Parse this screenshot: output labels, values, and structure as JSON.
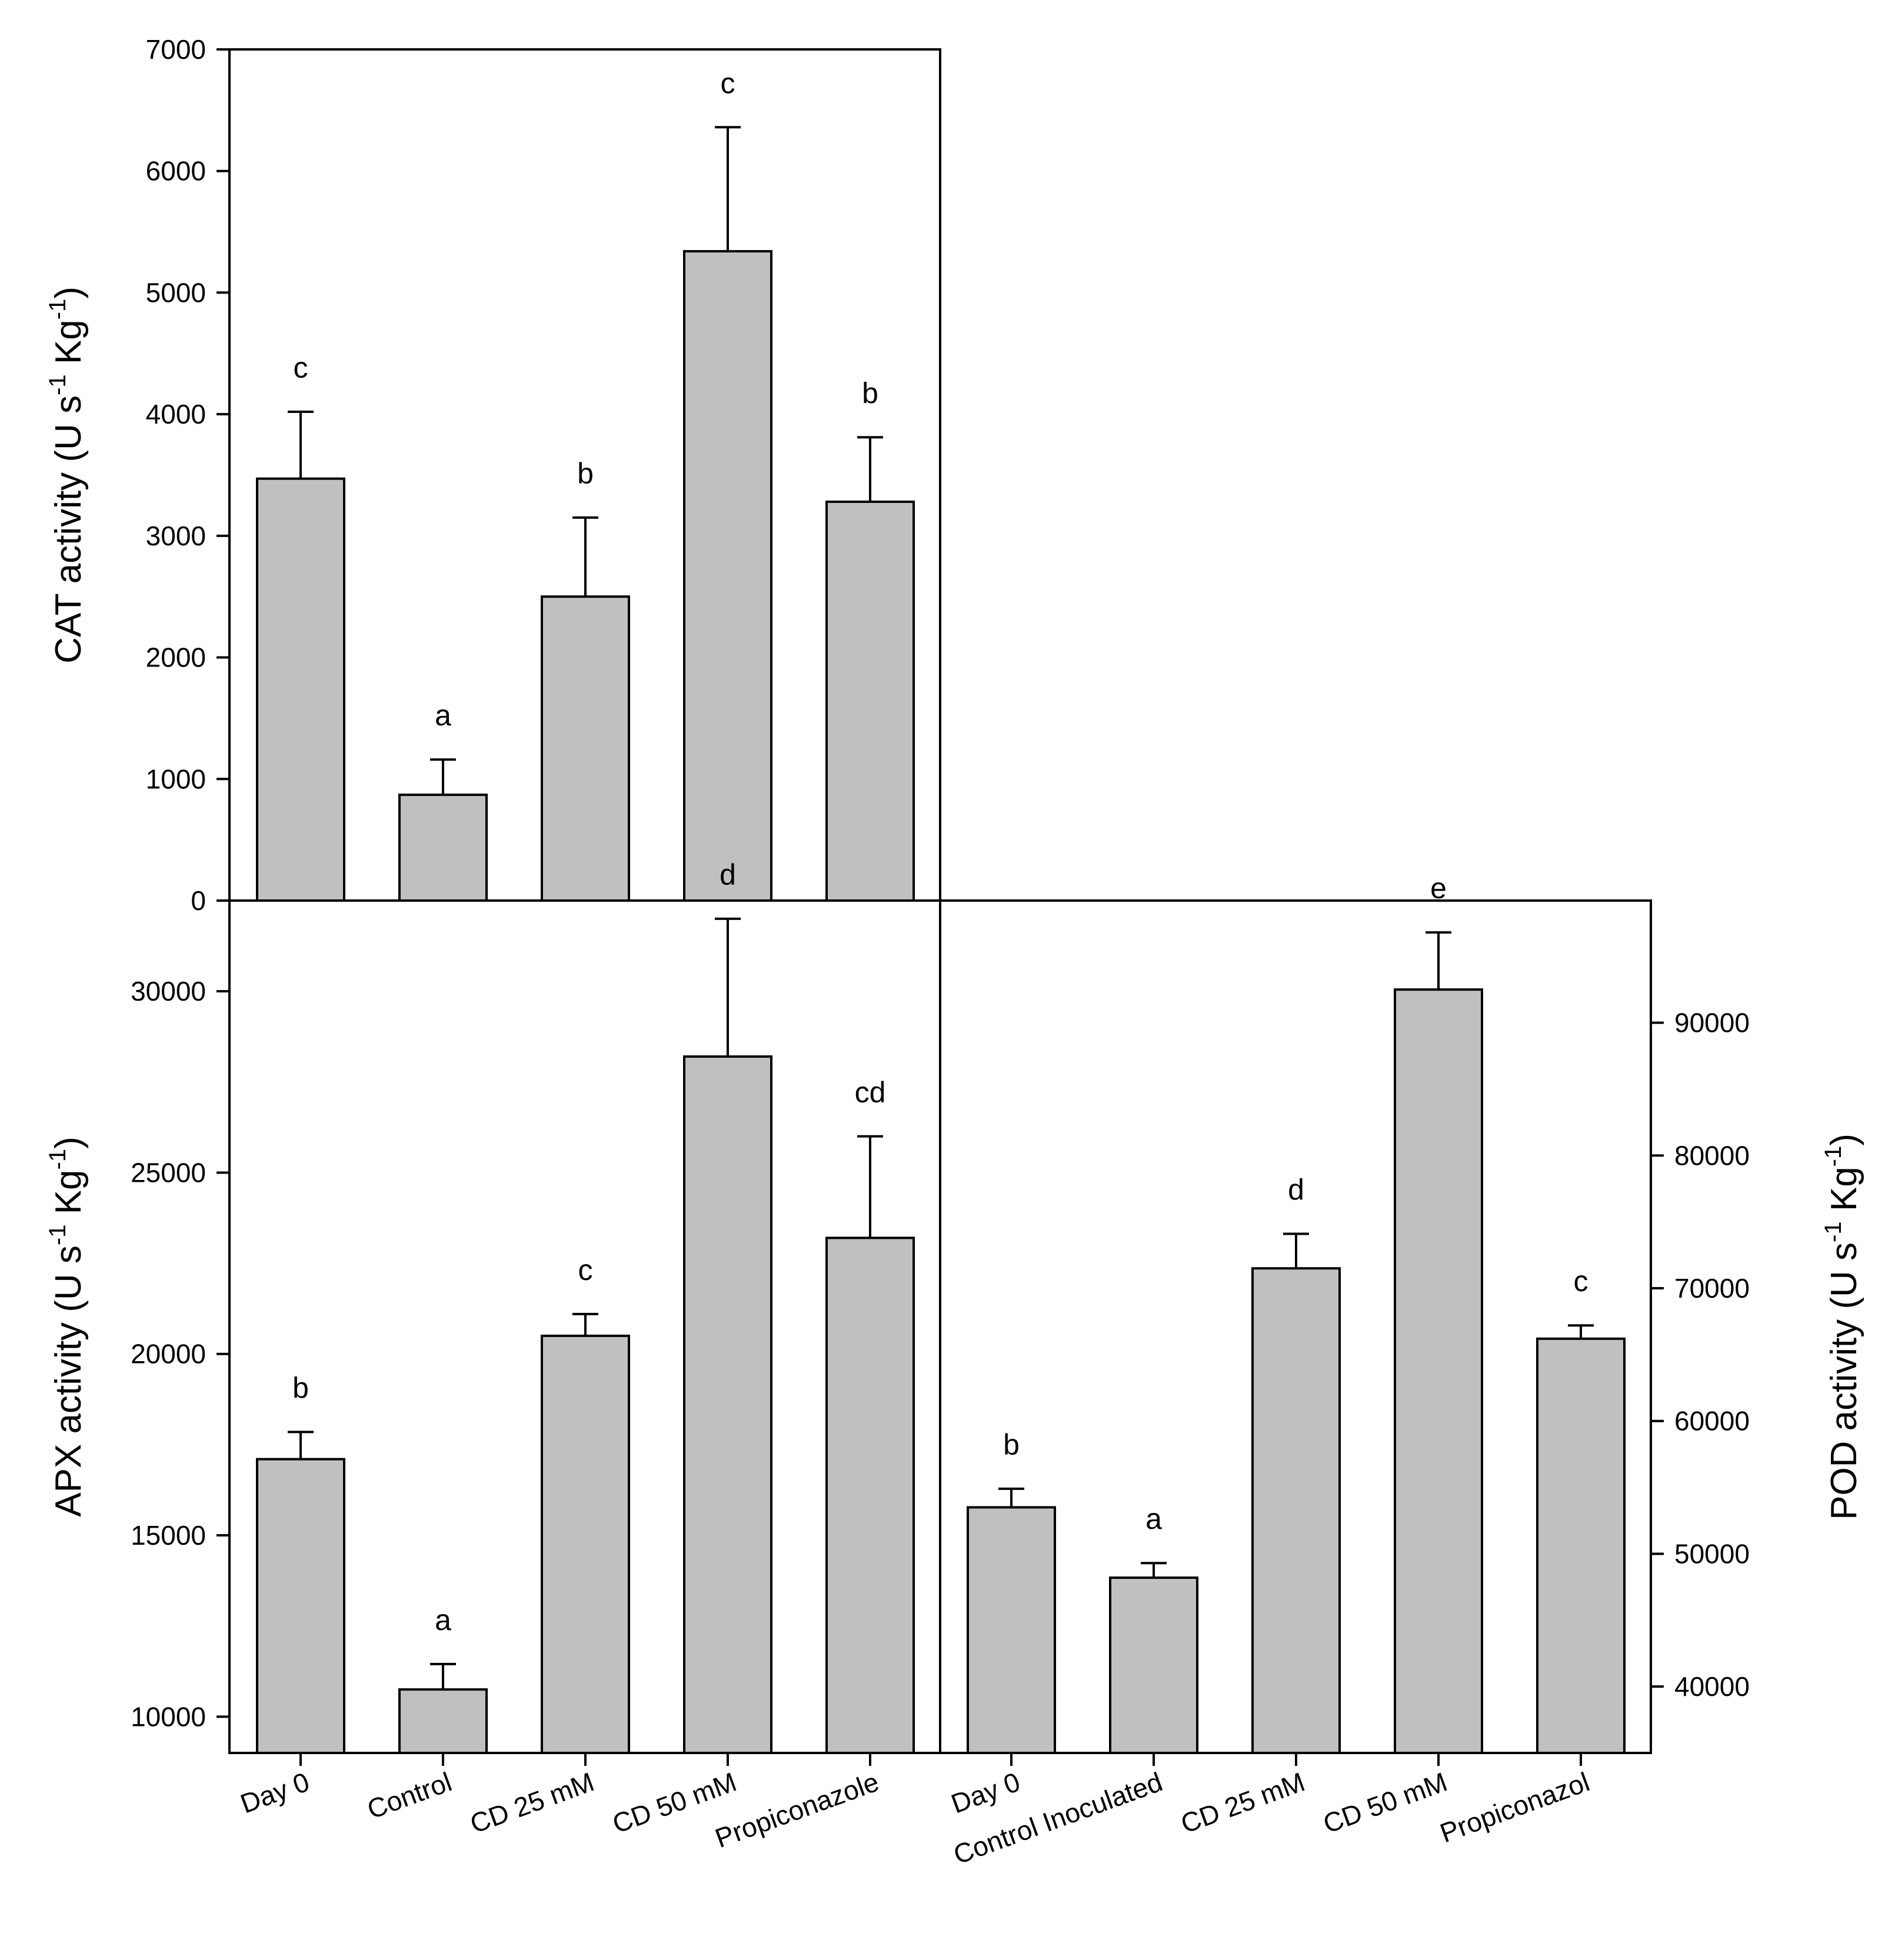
{
  "chart_data": [
    {
      "id": "cat",
      "type": "bar",
      "panel": "top-left",
      "categories": [
        "Day 0",
        "Control",
        "CD 25 mM",
        "CD 50 mM",
        "Propiconazole"
      ],
      "values": [
        3470,
        870,
        2500,
        5340,
        3280
      ],
      "errors": [
        550,
        290,
        650,
        1020,
        530
      ],
      "letters": [
        "c",
        "a",
        "b",
        "c",
        "b"
      ],
      "ylabel": "CAT activity (U s-1 Kg-1)",
      "ylabel_main": "CAT activity (U s",
      "ylabel_mid": " Kg",
      "ylabel_end": ")",
      "ylabel_sup": "-1",
      "ylim": [
        0,
        7000
      ],
      "yticks": [
        0,
        1000,
        2000,
        3000,
        4000,
        5000,
        6000,
        7000
      ],
      "ytick_labels": [
        "0",
        "1000",
        "2000",
        "3000",
        "4000",
        "5000",
        "6000",
        "7000"
      ],
      "axis_side": "left"
    },
    {
      "id": "apx",
      "type": "bar",
      "panel": "bottom-left",
      "categories": [
        "Day 0",
        "Control",
        "CD 25 mM",
        "CD 50 mM",
        "Propiconazole"
      ],
      "values": [
        17100,
        10750,
        20500,
        28200,
        23200
      ],
      "errors": [
        750,
        700,
        600,
        3800,
        2800
      ],
      "letters": [
        "b",
        "a",
        "c",
        "d",
        "cd"
      ],
      "ylabel": "APX activity (U s-1 Kg-1)",
      "ylabel_main": "APX activity (U s",
      "ylabel_mid": " Kg",
      "ylabel_end": ")",
      "ylabel_sup": "-1",
      "ylim": [
        9000,
        32500
      ],
      "yticks": [
        10000,
        15000,
        20000,
        25000,
        30000
      ],
      "ytick_labels": [
        "10000",
        "15000",
        "20000",
        "25000",
        "30000"
      ],
      "axis_side": "left"
    },
    {
      "id": "pod",
      "type": "bar",
      "panel": "bottom-right",
      "categories": [
        "Day 0",
        "Control Inoculated",
        "CD 25 mM",
        "CD 50 mM",
        "Propiconazol"
      ],
      "values": [
        53500,
        48200,
        71500,
        92500,
        66200
      ],
      "errors": [
        1400,
        1100,
        2600,
        4300,
        1000
      ],
      "letters": [
        "b",
        "a",
        "d",
        "e",
        "c"
      ],
      "ylabel": "POD activity (U s-1 Kg-1)",
      "ylabel_main": "POD activity (U s",
      "ylabel_mid": " Kg",
      "ylabel_end": ")",
      "ylabel_sup": "-1",
      "ylim": [
        35000,
        99200
      ],
      "yticks": [
        40000,
        50000,
        60000,
        70000,
        80000,
        90000
      ],
      "ytick_labels": [
        "40000",
        "50000",
        "60000",
        "70000",
        "80000",
        "90000"
      ],
      "axis_side": "right"
    }
  ]
}
